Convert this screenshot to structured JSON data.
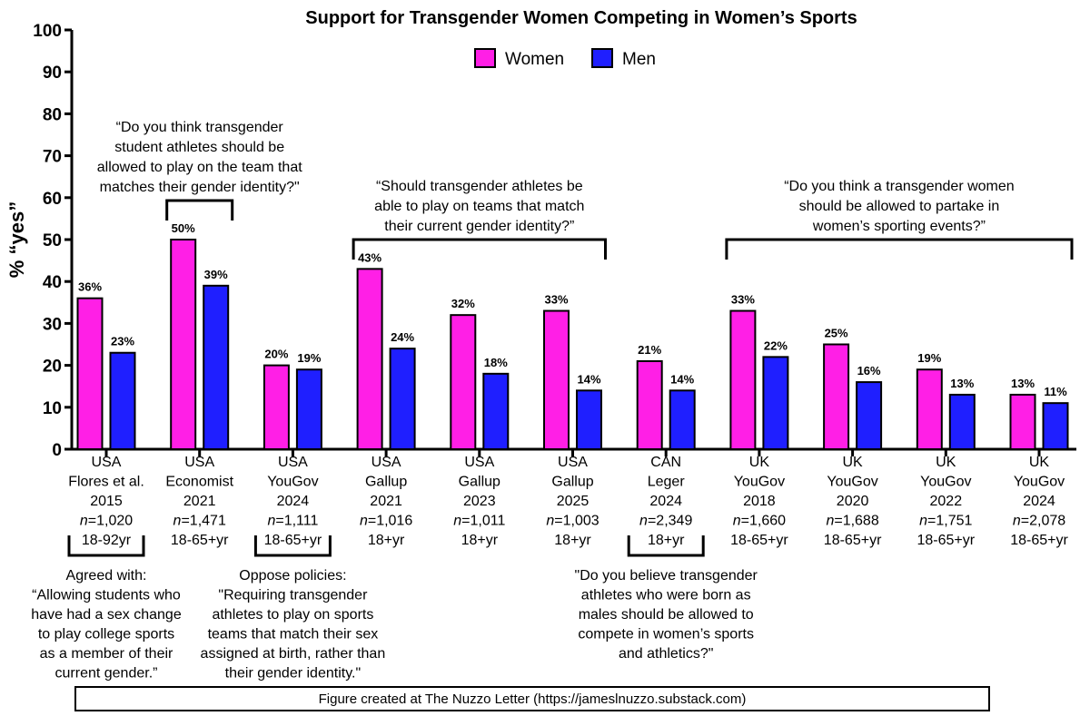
{
  "chart_data": {
    "type": "bar",
    "title": "Support for Transgender Women Competing in Women’s Sports",
    "ylabel": "% “yes”",
    "ylim": [
      0,
      100
    ],
    "yticks": [
      0,
      10,
      20,
      30,
      40,
      50,
      60,
      70,
      80,
      90,
      100
    ],
    "grid": false,
    "legend_position": "top-center",
    "series": [
      {
        "name": "Women",
        "color": "#ff1fe6",
        "values": [
          36,
          50,
          20,
          43,
          32,
          33,
          21,
          33,
          25,
          19,
          13
        ],
        "labels": [
          "36%",
          "50%",
          "20%",
          "43%",
          "32%",
          "33%",
          "21%",
          "33%",
          "25%",
          "19%",
          "13%"
        ]
      },
      {
        "name": "Men",
        "color": "#1f1fff",
        "values": [
          23,
          39,
          19,
          24,
          18,
          14,
          14,
          22,
          16,
          13,
          11
        ],
        "labels": [
          "23%",
          "39%",
          "19%",
          "24%",
          "18%",
          "14%",
          "14%",
          "22%",
          "16%",
          "13%",
          "11%"
        ]
      }
    ],
    "categories": [
      {
        "lines": [
          "USA",
          "Flores et al.",
          "2015"
        ],
        "n": "=1,020",
        "age": "18-92yr"
      },
      {
        "lines": [
          "USA",
          "Economist",
          "2021"
        ],
        "n": "=1,471",
        "age": "18-65+yr"
      },
      {
        "lines": [
          "USA",
          "YouGov",
          "2024"
        ],
        "n": "=1,111",
        "age": "18-65+yr"
      },
      {
        "lines": [
          "USA",
          "Gallup",
          "2021"
        ],
        "n": "=1,016",
        "age": "18+yr"
      },
      {
        "lines": [
          "USA",
          "Gallup",
          "2023"
        ],
        "n": "=1,011",
        "age": "18+yr"
      },
      {
        "lines": [
          "USA",
          "Gallup",
          "2025"
        ],
        "n": "=1,003",
        "age": "18+yr"
      },
      {
        "lines": [
          "CAN",
          "Leger",
          "2024"
        ],
        "n": "=2,349",
        "age": "18+yr"
      },
      {
        "lines": [
          "UK",
          "YouGov",
          "2018"
        ],
        "n": "=1,660",
        "age": "18-65+yr"
      },
      {
        "lines": [
          "UK",
          "YouGov",
          "2020"
        ],
        "n": "=1,688",
        "age": "18-65+yr"
      },
      {
        "lines": [
          "UK",
          "YouGov",
          "2022"
        ],
        "n": "=1,751",
        "age": "18-65+yr"
      },
      {
        "lines": [
          "UK",
          "YouGov",
          "2024"
        ],
        "n": "=2,078",
        "age": "18-65+yr"
      }
    ],
    "n_prefix": "n",
    "annotations_top": [
      {
        "group": [
          1,
          1
        ],
        "lines": [
          "“Do you think transgender",
          "student athletes should be",
          "allowed to play on the team that",
          "matches their gender identity?\""
        ]
      },
      {
        "group": [
          3,
          5
        ],
        "lines": [
          "“Should transgender athletes be",
          "able to play on teams that match",
          "their current gender identity?”"
        ]
      },
      {
        "group": [
          7,
          10
        ],
        "lines": [
          "“Do you think a transgender women",
          "should be allowed to partake in",
          "women’s sporting events?”"
        ]
      }
    ],
    "annotations_bottom": [
      {
        "group": [
          0,
          0
        ],
        "lines": [
          "Agreed with:",
          "“Allowing students who",
          "have had a sex change",
          "to play college sports",
          "as a member of their",
          "current gender.”"
        ]
      },
      {
        "group": [
          2,
          2
        ],
        "lines": [
          "Oppose policies:",
          "\"Requiring transgender",
          "athletes to play on sports",
          "teams that match their sex",
          "assigned at birth, rather than",
          "their gender identity.\""
        ]
      },
      {
        "group": [
          6,
          6
        ],
        "lines": [
          "\"Do you believe transgender",
          "athletes who were born as",
          "males should be allowed to",
          "compete in women’s sports",
          "and athletics?\""
        ]
      }
    ]
  },
  "footer": {
    "text": "Figure created at The Nuzzo Letter (https://jameslnuzzo.substack.com)"
  }
}
